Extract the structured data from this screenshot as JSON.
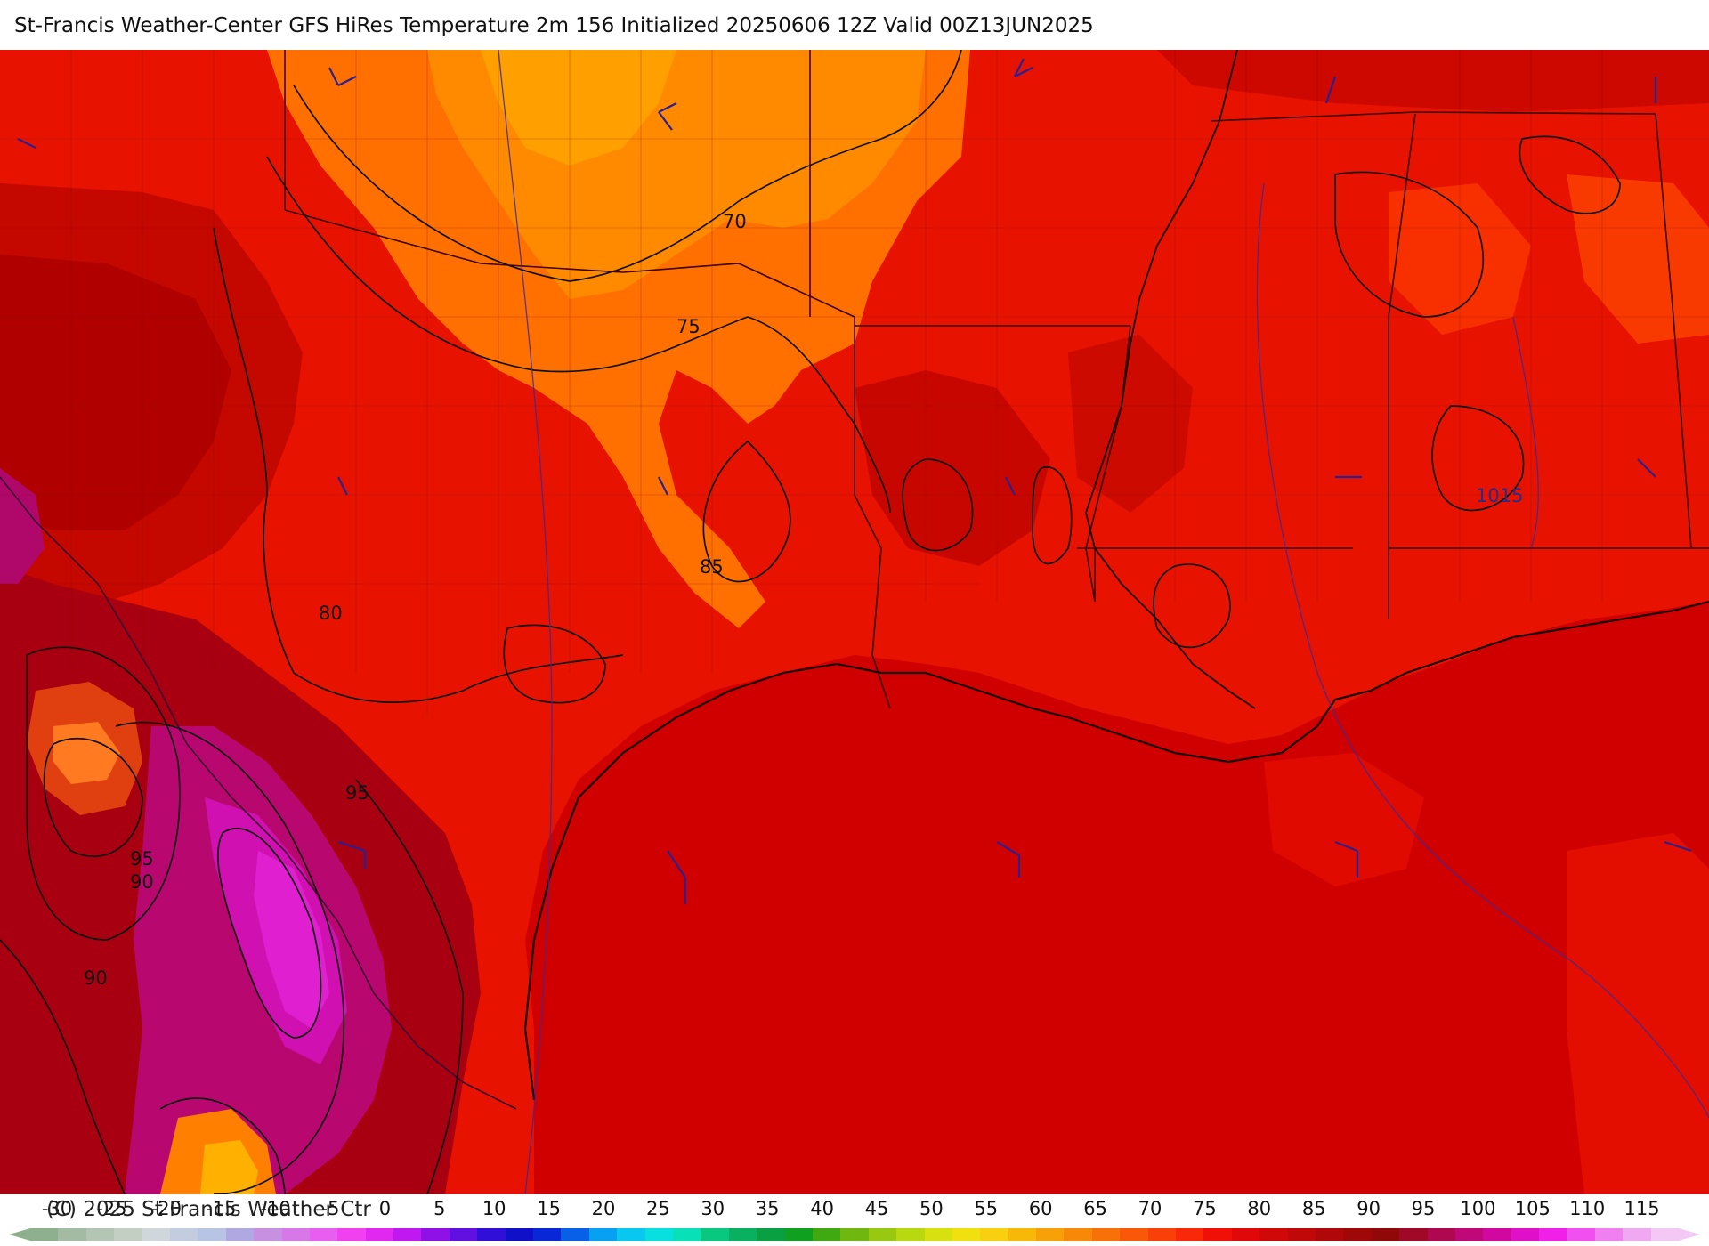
{
  "header": {
    "title": "St-Francis Weather-Center GFS HiRes Temperature 2m  156 Initialized 20250606 12Z Valid 00Z13JUN2025"
  },
  "map": {
    "contour_labels": [
      "70",
      "75",
      "80",
      "85",
      "95",
      "95",
      "90",
      "90"
    ],
    "pressure_label": "1015",
    "colors": {
      "sea": "#d40000",
      "land_base": "#e81200",
      "orange": "#ff7a00",
      "dark_red": "#b00000",
      "magenta": "#c0108a",
      "hot_magenta": "#e020d0"
    }
  },
  "colorbar": {
    "copyright": "(C) 2025 St Francis Weather Ctr",
    "ticks": [
      "-30",
      "-25",
      "-20",
      "-15",
      "-10",
      "-5",
      "0",
      "5",
      "10",
      "15",
      "20",
      "25",
      "30",
      "35",
      "40",
      "45",
      "50",
      "55",
      "60",
      "65",
      "70",
      "75",
      "80",
      "85",
      "90",
      "95",
      "100",
      "105",
      "110",
      "115"
    ],
    "colors": [
      "#8fb08f",
      "#a3bba3",
      "#b3c6b3",
      "#c4cfc4",
      "#cfd6dc",
      "#c4cce0",
      "#b8c4e4",
      "#b0a8e0",
      "#c890e0",
      "#d878e8",
      "#e85ef0",
      "#f040f0",
      "#e028f0",
      "#c018f0",
      "#9010e8",
      "#6010e0",
      "#3010d8",
      "#1010c8",
      "#0828d8",
      "#0860e8",
      "#08a0f0",
      "#08c8f0",
      "#08e0e0",
      "#08e0b8",
      "#08c880",
      "#08b060",
      "#08a040",
      "#10a020",
      "#40a810",
      "#70b810",
      "#98c810",
      "#b8d810",
      "#d8e010",
      "#f0e010",
      "#f8d010",
      "#f8b808",
      "#f8a008",
      "#f88808",
      "#f87008",
      "#f85808",
      "#f84008",
      "#f82808",
      "#f01008",
      "#e00808",
      "#d00808",
      "#c00808",
      "#b00808",
      "#a00808",
      "#900808",
      "#a00828",
      "#b00850",
      "#c00878",
      "#d008a0",
      "#e010c8",
      "#f020e8",
      "#f050f0",
      "#f080f0",
      "#f0a8f0",
      "#f4c8f4"
    ]
  }
}
